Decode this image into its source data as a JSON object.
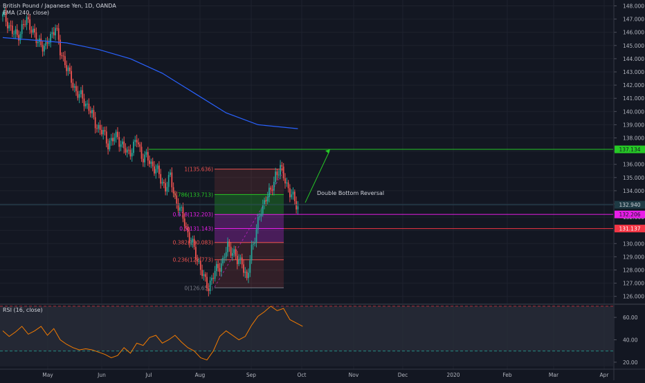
{
  "header": {
    "symbol_title": "British Pound / Japanese Yen, 1D, OANDA",
    "ema_label": "EMA (240, close)",
    "rsi_label": "RSI (16, close)"
  },
  "colors": {
    "background": "#131722",
    "up_candle": "#26a69a",
    "down_candle": "#ef5350",
    "ema_line": "#2962ff",
    "rsi_line": "#f57c00",
    "resistance_line": "#26c926",
    "fib_magenta": "#e91ee9",
    "fib_red": "#f23645",
    "arrow": "#26c926"
  },
  "chart_data": {
    "type": "candlestick",
    "title": "British Pound / Japanese Yen, 1D, OANDA",
    "price_axis": {
      "ticks": [
        "148.000",
        "147.000",
        "146.000",
        "145.000",
        "144.000",
        "143.000",
        "142.000",
        "141.000",
        "140.000",
        "139.000",
        "138.000",
        "137.000",
        "136.000",
        "135.000",
        "134.000",
        "133.000",
        "132.000",
        "131.000",
        "130.000",
        "129.000",
        "128.000",
        "127.000",
        "126.000"
      ],
      "range": [
        125.8,
        148.3
      ]
    },
    "time_axis": {
      "labels": [
        "May",
        "Jun",
        "Jul",
        "Aug",
        "Sep",
        "Oct",
        "Nov",
        "Dec",
        "2020",
        "Feb",
        "Mar",
        "Apr"
      ]
    },
    "price_path": [
      [
        0,
        147.2
      ],
      [
        3,
        146.8
      ],
      [
        6,
        146.0
      ],
      [
        9,
        145.7
      ],
      [
        12,
        146.3
      ],
      [
        15,
        146.9
      ],
      [
        18,
        146.4
      ],
      [
        21,
        145.3
      ],
      [
        24,
        145.2
      ],
      [
        27,
        144.8
      ],
      [
        30,
        145.7
      ],
      [
        33,
        146.5
      ],
      [
        36,
        144.5
      ],
      [
        39,
        143.8
      ],
      [
        42,
        142.6
      ],
      [
        45,
        141.8
      ],
      [
        48,
        141.2
      ],
      [
        51,
        140.8
      ],
      [
        54,
        140.3
      ],
      [
        57,
        139.3
      ],
      [
        60,
        138.8
      ],
      [
        63,
        138.3
      ],
      [
        66,
        137.6
      ],
      [
        69,
        137.9
      ],
      [
        72,
        138.1
      ],
      [
        75,
        137.4
      ],
      [
        78,
        136.8
      ],
      [
        81,
        137.2
      ],
      [
        84,
        137.8
      ],
      [
        87,
        136.7
      ],
      [
        90,
        136.5
      ],
      [
        93,
        136.0
      ],
      [
        96,
        135.7
      ],
      [
        99,
        134.8
      ],
      [
        102,
        134.3
      ],
      [
        105,
        135.0
      ],
      [
        108,
        133.5
      ],
      [
        111,
        132.5
      ],
      [
        114,
        131.7
      ],
      [
        117,
        130.3
      ],
      [
        120,
        129.6
      ],
      [
        123,
        128.5
      ],
      [
        126,
        127.3
      ],
      [
        129,
        126.8
      ],
      [
        132,
        127.5
      ],
      [
        135,
        128.3
      ],
      [
        138,
        128.6
      ],
      [
        141,
        129.8
      ],
      [
        144,
        129.5
      ],
      [
        147,
        128.6
      ],
      [
        150,
        128.8
      ],
      [
        153,
        127.0
      ],
      [
        156,
        129.7
      ],
      [
        159,
        131.0
      ],
      [
        162,
        132.5
      ],
      [
        165,
        133.6
      ],
      [
        168,
        133.8
      ],
      [
        171,
        135.3
      ],
      [
        174,
        135.6
      ],
      [
        177,
        134.9
      ],
      [
        180,
        133.8
      ],
      [
        183,
        133.2
      ],
      [
        185,
        132.9
      ]
    ],
    "ema": {
      "name": "EMA (240, close)",
      "points": [
        [
          0,
          145.6
        ],
        [
          20,
          145.4
        ],
        [
          40,
          145.2
        ],
        [
          60,
          144.7
        ],
        [
          80,
          144.0
        ],
        [
          100,
          142.9
        ],
        [
          120,
          141.4
        ],
        [
          140,
          139.9
        ],
        [
          160,
          139.0
        ],
        [
          185,
          138.7
        ]
      ]
    },
    "rsi": {
      "name": "RSI (16, close)",
      "ticks": [
        "60.00",
        "40.00",
        "20.00"
      ],
      "range": [
        15,
        75
      ],
      "levels": [
        70,
        30
      ],
      "points": [
        [
          0,
          48
        ],
        [
          4,
          43
        ],
        [
          8,
          47
        ],
        [
          12,
          52
        ],
        [
          16,
          45
        ],
        [
          20,
          48
        ],
        [
          24,
          52
        ],
        [
          28,
          44
        ],
        [
          32,
          50
        ],
        [
          36,
          40
        ],
        [
          40,
          36
        ],
        [
          44,
          33
        ],
        [
          48,
          31
        ],
        [
          52,
          32
        ],
        [
          56,
          31
        ],
        [
          60,
          29
        ],
        [
          64,
          27
        ],
        [
          68,
          24
        ],
        [
          72,
          26
        ],
        [
          76,
          33
        ],
        [
          80,
          28
        ],
        [
          84,
          37
        ],
        [
          88,
          35
        ],
        [
          92,
          42
        ],
        [
          96,
          44
        ],
        [
          100,
          37
        ],
        [
          104,
          40
        ],
        [
          108,
          44
        ],
        [
          112,
          38
        ],
        [
          116,
          33
        ],
        [
          120,
          30
        ],
        [
          124,
          24
        ],
        [
          128,
          22
        ],
        [
          132,
          30
        ],
        [
          136,
          43
        ],
        [
          140,
          48
        ],
        [
          144,
          44
        ],
        [
          148,
          40
        ],
        [
          152,
          43
        ],
        [
          156,
          53
        ],
        [
          160,
          61
        ],
        [
          164,
          65
        ],
        [
          168,
          70
        ],
        [
          172,
          66
        ],
        [
          176,
          68
        ],
        [
          180,
          58
        ],
        [
          184,
          55
        ],
        [
          188,
          52
        ]
      ]
    },
    "fibonacci": {
      "levels": [
        {
          "label": "1(135.636)",
          "value": 135.636,
          "color": "#ef5350"
        },
        {
          "label": "0.786(133.713)",
          "value": 133.713,
          "color": "#26c926"
        },
        {
          "label": "0.618(132.203)",
          "value": 132.203,
          "color": "#e91ee9"
        },
        {
          "label": "0.5(131.143)",
          "value": 131.143,
          "color": "#e91ee9"
        },
        {
          "label": "0.382(130.083)",
          "value": 130.083,
          "color": "#ef5350"
        },
        {
          "label": "0.236(128.773)",
          "value": 128.773,
          "color": "#ef5350"
        },
        {
          "label": "0(126.650)",
          "value": 126.65,
          "color": "#787b86"
        }
      ]
    },
    "horizontal_levels": [
      {
        "label": "137.134",
        "value": 137.134,
        "color": "#26c926"
      },
      {
        "label": "132.940",
        "value": 132.94,
        "color": "#2a4a5a"
      },
      {
        "label": "132.206",
        "value": 132.206,
        "color": "#e91ee9"
      },
      {
        "label": "131.137",
        "value": 131.137,
        "color": "#f23645"
      }
    ],
    "annotation": "Double Bottom Reversal"
  }
}
